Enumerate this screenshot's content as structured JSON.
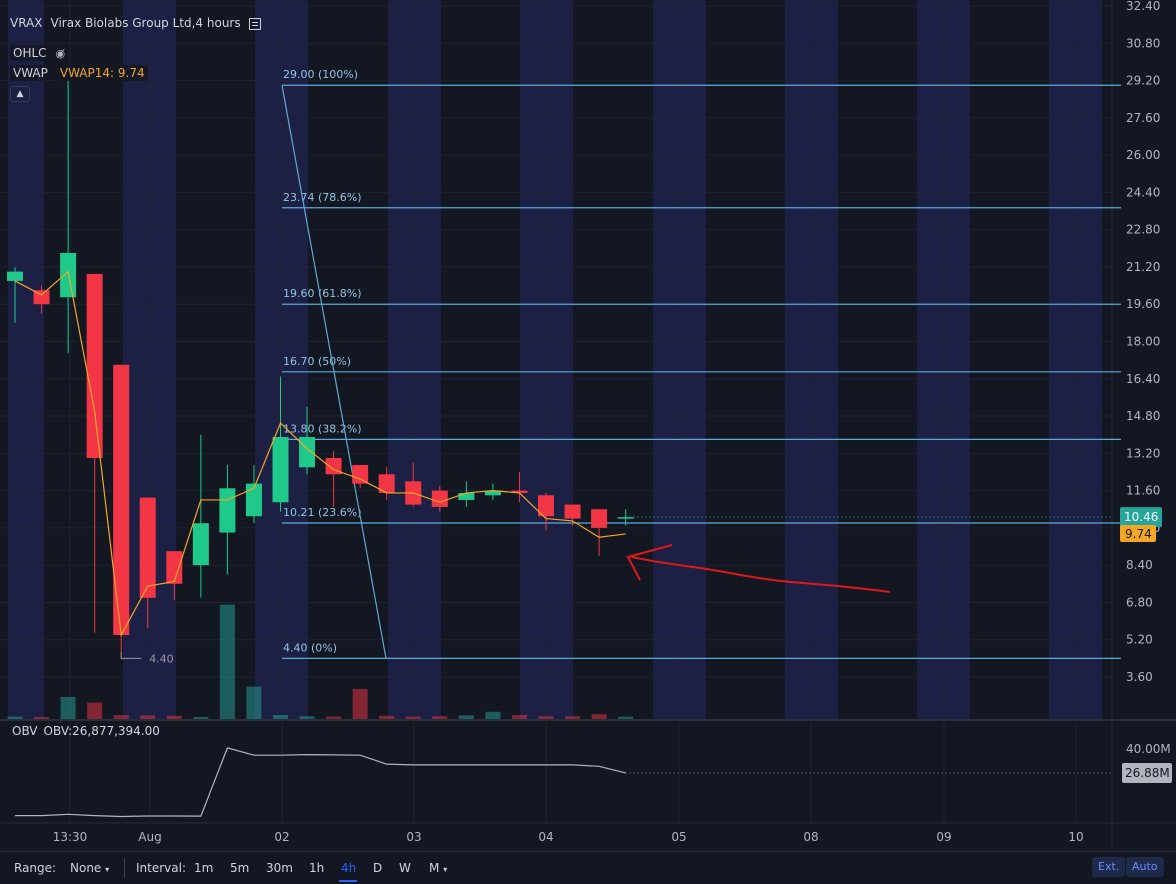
{
  "header": {
    "ticker": "VRAX",
    "title": "Virax Biolabs Group Ltd,4 hours",
    "ohlc_label": "OHLC",
    "vwap_label": "VWAP",
    "vwap_value": "VWAP14: 9.74"
  },
  "obv": {
    "label": "OBV",
    "value": "OBV:26,877,394.00",
    "axis_label": "40.00M",
    "last_badge": "26.88M"
  },
  "price_axis": {
    "labels": [
      "32.40",
      "30.80",
      "29.20",
      "27.60",
      "26.00",
      "24.40",
      "22.80",
      "21.20",
      "19.60",
      "18.00",
      "16.40",
      "14.80",
      "13.20",
      "11.60",
      "10.00",
      "8.40",
      "6.80",
      "5.20",
      "3.60"
    ],
    "last_price_badge": "10.46",
    "vwap_badge": "9.74"
  },
  "time_axis": {
    "labels": [
      "13:30",
      "Aug",
      "02",
      "03",
      "04",
      "05",
      "08",
      "09",
      "10"
    ]
  },
  "fibonacci": [
    {
      "label": "29.00 (100%)",
      "price": 29.0
    },
    {
      "label": "23.74 (78.6%)",
      "price": 23.74
    },
    {
      "label": "19.60 (61.8%)",
      "price": 19.6
    },
    {
      "label": "16.70 (50%)",
      "price": 16.7
    },
    {
      "label": "13.80 (38.2%)",
      "price": 13.8
    },
    {
      "label": "10.21 (23.6%)",
      "price": 10.21
    },
    {
      "label": "4.40 (0%)",
      "price": 4.4
    }
  ],
  "low_marker": "4.40",
  "bottom_bar": {
    "range_label": "Range:",
    "range_value": "None",
    "interval_label": "Interval:",
    "intervals": [
      "1m",
      "5m",
      "30m",
      "1h",
      "4h",
      "D",
      "W",
      "M"
    ],
    "active_interval": "4h",
    "ext_button": "Ext.",
    "auto_button": "Auto"
  },
  "colors": {
    "background": "#131722",
    "up": "#26a69a",
    "up_bright": "#1ec98a",
    "down": "#f23645",
    "fib_line": "#5fa9d6",
    "vwap": "#f5a623",
    "session_shade": "#1c2044",
    "annotation_arrow": "#e01818"
  },
  "chart_data": {
    "type": "candlestick",
    "title": "Virax Biolabs Group Ltd,4 hours",
    "ylim": [
      2.8,
      32.4
    ],
    "grid": true,
    "candles": [
      {
        "o": 20.6,
        "h": 21.2,
        "l": 18.8,
        "c": 21.0
      },
      {
        "o": 20.2,
        "h": 20.4,
        "l": 19.2,
        "c": 19.6
      },
      {
        "o": 19.9,
        "h": 29.2,
        "l": 17.5,
        "c": 21.8
      },
      {
        "o": 20.9,
        "h": 20.9,
        "l": 5.5,
        "c": 13.0
      },
      {
        "o": 17.0,
        "h": 17.0,
        "l": 4.4,
        "c": 5.4
      },
      {
        "o": 11.3,
        "h": 11.3,
        "l": 5.7,
        "c": 7.0
      },
      {
        "o": 9.0,
        "h": 9.0,
        "l": 6.9,
        "c": 7.6
      },
      {
        "o": 8.4,
        "h": 14.0,
        "l": 7.0,
        "c": 10.2
      },
      {
        "o": 9.8,
        "h": 12.7,
        "l": 8.0,
        "c": 11.7
      },
      {
        "o": 10.5,
        "h": 12.7,
        "l": 10.2,
        "c": 11.9
      },
      {
        "o": 11.1,
        "h": 16.5,
        "l": 10.7,
        "c": 13.9
      },
      {
        "o": 12.6,
        "h": 15.2,
        "l": 12.3,
        "c": 13.9
      },
      {
        "o": 13.0,
        "h": 13.3,
        "l": 10.9,
        "c": 12.3
      },
      {
        "o": 12.7,
        "h": 12.7,
        "l": 11.7,
        "c": 11.9
      },
      {
        "o": 12.3,
        "h": 12.6,
        "l": 11.2,
        "c": 11.5
      },
      {
        "o": 12.0,
        "h": 12.8,
        "l": 10.9,
        "c": 11.0
      },
      {
        "o": 11.6,
        "h": 11.8,
        "l": 10.7,
        "c": 10.9
      },
      {
        "o": 11.2,
        "h": 12.0,
        "l": 10.9,
        "c": 11.5
      },
      {
        "o": 11.4,
        "h": 11.9,
        "l": 11.2,
        "c": 11.6
      },
      {
        "o": 11.6,
        "h": 12.4,
        "l": 11.1,
        "c": 11.5
      },
      {
        "o": 11.4,
        "h": 11.5,
        "l": 9.9,
        "c": 10.5
      },
      {
        "o": 11.0,
        "h": 11.0,
        "l": 10.1,
        "c": 10.4
      },
      {
        "o": 10.8,
        "h": 10.8,
        "l": 8.8,
        "c": 10.0
      },
      {
        "o": 10.4,
        "h": 10.8,
        "l": 10.1,
        "c": 10.46
      }
    ],
    "vwap": [
      20.6,
      20.0,
      21.0,
      15.0,
      5.4,
      7.5,
      7.7,
      11.2,
      11.2,
      11.7,
      14.5,
      13.4,
      12.5,
      12.1,
      11.5,
      11.5,
      11.1,
      11.5,
      11.6,
      11.5,
      10.4,
      10.3,
      9.6,
      9.74
    ],
    "volume": [
      0.6,
      0.5,
      5.5,
      4.1,
      1.0,
      0.9,
      0.8,
      0.5,
      28.6,
      8.1,
      1.0,
      0.7,
      0.6,
      7.5,
      0.8,
      0.6,
      0.7,
      0.9,
      1.8,
      1.0,
      0.7,
      0.7,
      1.2,
      0.6
    ],
    "obv": [
      3.5,
      3.5,
      4.2,
      3.5,
      3.0,
      3.3,
      3.3,
      3.2,
      40.6,
      36.6,
      36.6,
      36.9,
      36.8,
      36.6,
      31.7,
      31.3,
      31.3,
      31.3,
      31.3,
      31.3,
      31.3,
      31.3,
      30.5,
      26.88
    ],
    "last_price": 10.46
  }
}
